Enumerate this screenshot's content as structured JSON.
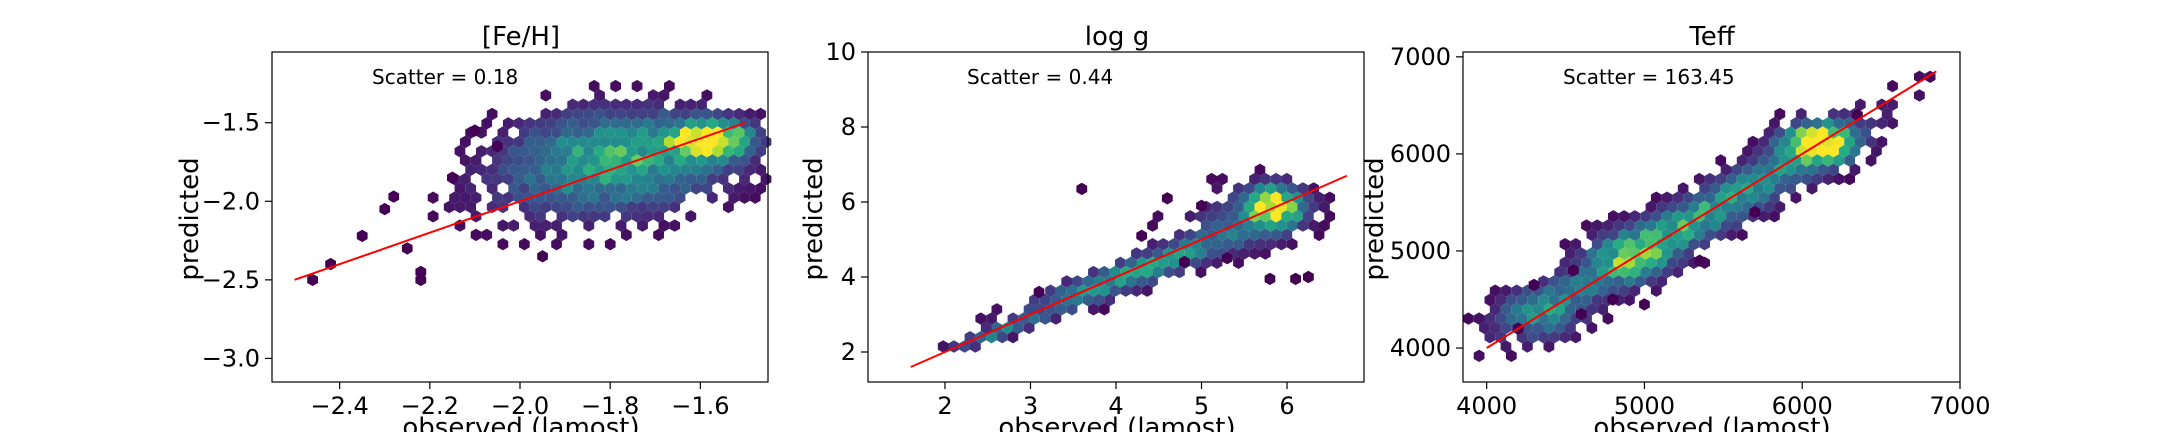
{
  "figure": {
    "background": "#ffffff",
    "colormap": "viridis",
    "fit_line_color": "#ff0000"
  },
  "chart_data": [
    {
      "type": "scatter",
      "style": "hexbin",
      "title": "[Fe/H]",
      "xlabel": "observed (lamost)",
      "ylabel": "predicted",
      "annotation": "Scatter = 0.18",
      "xlim": [
        -2.55,
        -1.45
      ],
      "ylim": [
        -3.15,
        -1.05
      ],
      "xticks": [
        -2.4,
        -2.2,
        -2.0,
        -1.8,
        -1.6
      ],
      "xtick_labels": [
        "−2.4",
        "−2.2",
        "−2.0",
        "−1.8",
        "−1.6"
      ],
      "yticks": [
        -3.0,
        -2.5,
        -2.0,
        -1.5
      ],
      "ytick_labels": [
        "−3.0",
        "−2.5",
        "−2.0",
        "−1.5"
      ],
      "fit_line": [
        [
          -2.5,
          -2.5
        ],
        [
          -1.5,
          -1.5
        ]
      ],
      "grid": false,
      "clusters": [
        {
          "cx": -1.58,
          "cy": -1.6,
          "sx": 0.06,
          "sy": 0.08,
          "w": 1.0
        },
        {
          "cx": -1.75,
          "cy": -1.72,
          "sx": 0.15,
          "sy": 0.2,
          "w": 0.55
        },
        {
          "cx": -1.9,
          "cy": -1.85,
          "sx": 0.12,
          "sy": 0.22,
          "w": 0.2
        },
        {
          "cx": -2.1,
          "cy": -2.0,
          "sx": 0.09,
          "sy": 0.18,
          "w": 0.05
        }
      ],
      "sparse_points": [
        [
          -2.46,
          -2.5
        ],
        [
          -2.42,
          -2.4
        ],
        [
          -2.3,
          -2.05
        ],
        [
          -2.25,
          -2.3
        ],
        [
          -2.22,
          -2.5
        ],
        [
          -2.22,
          -2.45
        ],
        [
          -2.1,
          -1.55
        ],
        [
          -2.05,
          -1.65
        ],
        [
          -2.15,
          -1.85
        ],
        [
          -1.95,
          -2.35
        ],
        [
          -2.28,
          -1.97
        ],
        [
          -2.35,
          -2.22
        ]
      ]
    },
    {
      "type": "scatter",
      "style": "hexbin",
      "title": "log g",
      "xlabel": "observed (lamost)",
      "ylabel": "predicted",
      "annotation": "Scatter = 0.44",
      "xlim": [
        1.1,
        6.9
      ],
      "ylim": [
        1.2,
        10.0
      ],
      "xticks": [
        2,
        3,
        4,
        5,
        6
      ],
      "xtick_labels": [
        "2",
        "3",
        "4",
        "5",
        "6"
      ],
      "yticks": [
        2,
        4,
        6,
        8,
        10
      ],
      "ytick_labels": [
        "2",
        "4",
        "6",
        "8",
        "10"
      ],
      "fit_line": [
        [
          1.6,
          1.6
        ],
        [
          6.7,
          6.7
        ]
      ],
      "grid": false,
      "clusters": [
        {
          "cx": 5.85,
          "cy": 5.9,
          "sx": 0.22,
          "sy": 0.35,
          "w": 1.0
        },
        {
          "cx": 4.2,
          "cy": 4.1,
          "sx": 0.9,
          "sy": 0.8,
          "w": 0.55,
          "corr": 0.93
        },
        {
          "cx": 2.6,
          "cy": 2.5,
          "sx": 0.35,
          "sy": 0.3,
          "w": 0.35,
          "corr": 0.9
        },
        {
          "cx": 5.4,
          "cy": 5.5,
          "sx": 0.5,
          "sy": 0.6,
          "w": 0.2
        }
      ],
      "sparse_points": [
        [
          3.6,
          6.35
        ],
        [
          5.8,
          3.95
        ],
        [
          6.1,
          3.95
        ],
        [
          6.25,
          4.0
        ],
        [
          4.6,
          6.1
        ],
        [
          5.0,
          5.9
        ],
        [
          4.3,
          5.1
        ],
        [
          4.8,
          4.4
        ],
        [
          5.3,
          4.5
        ],
        [
          3.1,
          3.6
        ]
      ]
    },
    {
      "type": "scatter",
      "style": "hexbin",
      "title": "Teff",
      "xlabel": "observed (lamost)",
      "ylabel": "predicted",
      "annotation": "Scatter = 163.45",
      "xlim": [
        3850,
        7000
      ],
      "ylim": [
        3650,
        7050
      ],
      "xticks": [
        4000,
        5000,
        6000,
        7000
      ],
      "xtick_labels": [
        "4000",
        "5000",
        "6000",
        "7000"
      ],
      "yticks": [
        4000,
        5000,
        6000,
        7000
      ],
      "ytick_labels": [
        "4000",
        "5000",
        "6000",
        "7000"
      ],
      "fit_line": [
        [
          4000,
          4000
        ],
        [
          6850,
          6850
        ]
      ],
      "grid": false,
      "clusters": [
        {
          "cx": 6100,
          "cy": 6100,
          "sx": 150,
          "sy": 150,
          "w": 1.0
        },
        {
          "cx": 5300,
          "cy": 5300,
          "sx": 650,
          "sy": 620,
          "w": 0.6,
          "corr": 0.95
        },
        {
          "cx": 4350,
          "cy": 4350,
          "sx": 180,
          "sy": 180,
          "w": 0.35
        },
        {
          "cx": 4900,
          "cy": 4950,
          "sx": 200,
          "sy": 200,
          "w": 0.3
        }
      ],
      "sparse_points": [
        [
          4300,
          4650
        ],
        [
          4600,
          4350
        ],
        [
          4800,
          4500
        ],
        [
          5000,
          4450
        ],
        [
          5350,
          4900
        ],
        [
          4550,
          4800
        ],
        [
          5700,
          5400
        ],
        [
          6350,
          6400
        ],
        [
          4200,
          4200
        ]
      ]
    }
  ]
}
